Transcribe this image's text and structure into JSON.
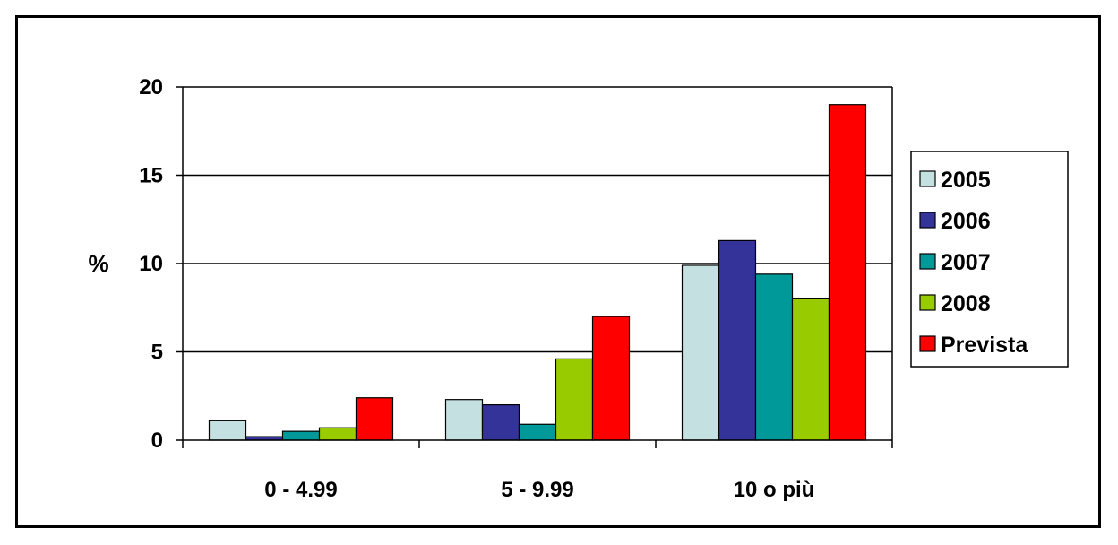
{
  "chart_data": {
    "type": "bar",
    "title": "",
    "xlabel": "",
    "ylabel": "%",
    "ylim": [
      0,
      20
    ],
    "yticks": [
      0,
      5,
      10,
      15,
      20
    ],
    "grid": true,
    "legend_position": "right",
    "categories": [
      "0 - 4.99",
      "5 - 9.99",
      "10 o più"
    ],
    "series": [
      {
        "name": "2005",
        "color": "#c5e0e0",
        "values": [
          1.1,
          2.3,
          9.9
        ]
      },
      {
        "name": "2006",
        "color": "#333399",
        "values": [
          0.2,
          2.0,
          11.3
        ]
      },
      {
        "name": "2007",
        "color": "#009999",
        "values": [
          0.5,
          0.9,
          9.4
        ]
      },
      {
        "name": "2008",
        "color": "#99cc00",
        "values": [
          0.7,
          4.6,
          8.0
        ]
      },
      {
        "name": "Prevista",
        "color": "#ff0000",
        "values": [
          2.4,
          7.0,
          19.0
        ]
      }
    ]
  }
}
